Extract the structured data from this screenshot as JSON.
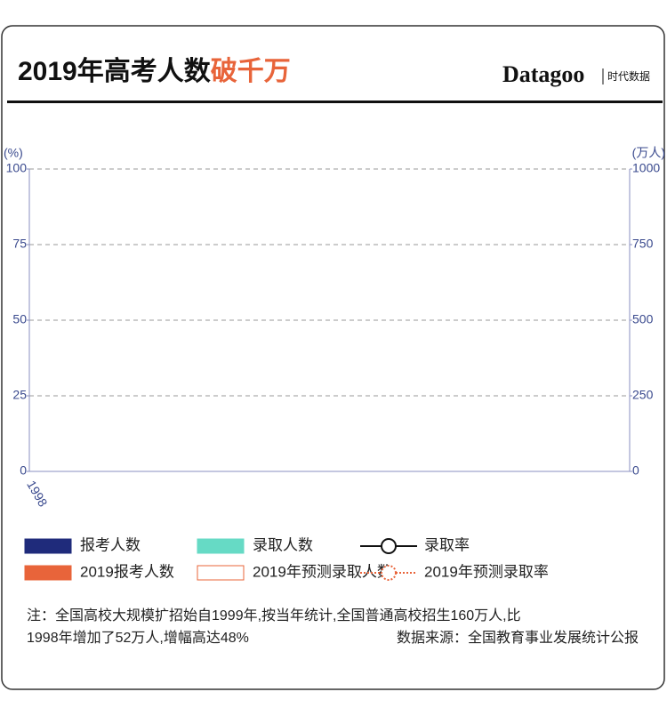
{
  "header": {
    "title": "2019年高考人数",
    "title_highlight": "破千万",
    "brand": "Datagoo",
    "brand_sub": "时代数据"
  },
  "chart_data": {
    "type": "bar",
    "categories": [
      "1998"
    ],
    "ylabel": "(%)",
    "y2label": "(万人)",
    "ylim": [
      0,
      100
    ],
    "yticks": [
      0,
      25,
      50,
      75,
      100
    ],
    "y2lim": [
      0,
      1000
    ],
    "y2ticks": [
      0,
      250,
      500,
      750,
      1000
    ],
    "grid": true,
    "series": [
      {
        "name": "报考人数",
        "color": "#1f2b7b",
        "mark": "bar",
        "axis": "y2",
        "values": [
          null
        ]
      },
      {
        "name": "录取人数",
        "color": "#66dac5",
        "mark": "bar",
        "axis": "y2",
        "values": [
          null
        ]
      },
      {
        "name": "录取率",
        "color": "#111111",
        "mark": "line",
        "values": [
          null
        ]
      },
      {
        "name": "2019报考人数",
        "color": "#e8643a",
        "mark": "bar",
        "axis": "y2",
        "values": [
          null
        ]
      },
      {
        "name": "2019年预测录取人数",
        "color": "#e8643a",
        "mark": "bar",
        "outline": true,
        "axis": "y2",
        "values": [
          null
        ]
      },
      {
        "name": "2019年预测录取率",
        "color": "#e8643a",
        "mark": "line",
        "dashed": true,
        "values": [
          null
        ]
      }
    ]
  },
  "footer": {
    "note_line1": "注：全国高校大规模扩招始自1999年,按当年统计,全国普通高校招生160万人,比",
    "note_line2": "1998年增加了52万人,增幅高达48%",
    "source": "数据来源：全国教育事业发展统计公报"
  }
}
